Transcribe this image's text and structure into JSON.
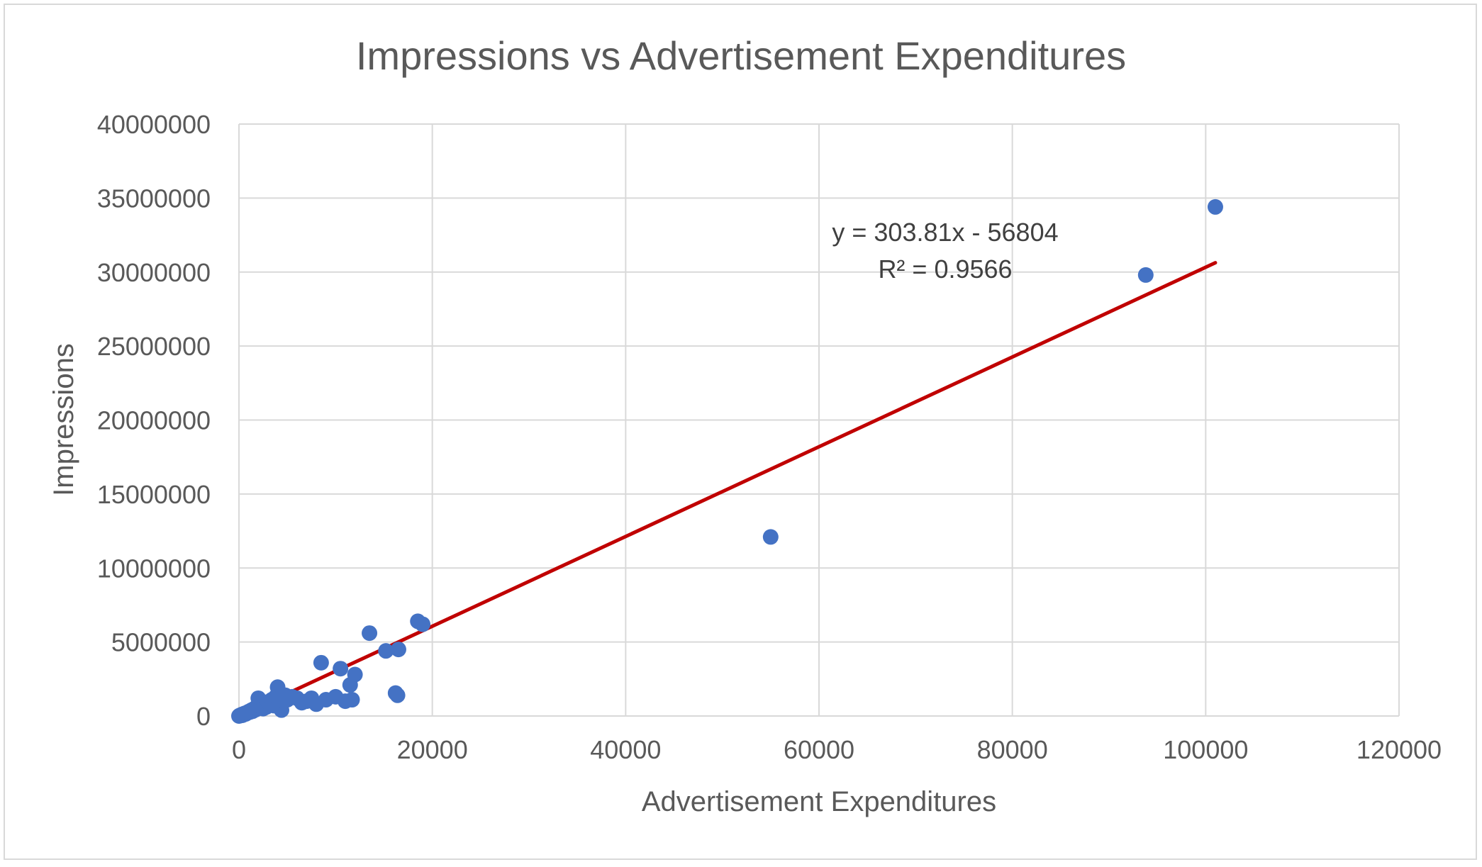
{
  "chart_data": {
    "type": "scatter",
    "title": "Impressions vs Advertisement Expenditures",
    "xlabel": "Advertisement Expenditures",
    "ylabel": "Impressions",
    "xlim": [
      0,
      120000
    ],
    "ylim": [
      0,
      40000000
    ],
    "x_ticks": [
      0,
      20000,
      40000,
      60000,
      80000,
      100000,
      120000
    ],
    "y_ticks": [
      0,
      5000000,
      10000000,
      15000000,
      20000000,
      25000000,
      30000000,
      35000000,
      40000000
    ],
    "x_tick_labels": [
      "0",
      "20000",
      "40000",
      "60000",
      "80000",
      "100000",
      "120000"
    ],
    "y_tick_labels": [
      "0",
      "5000000",
      "10000000",
      "15000000",
      "20000000",
      "25000000",
      "30000000",
      "35000000",
      "40000000"
    ],
    "grid": true,
    "legend": "none",
    "colors": {
      "points": "#4472c4",
      "trendline": "#c00000",
      "grid": "#d9d9d9",
      "text": "#595959"
    },
    "series": [
      {
        "points": [
          [
            0,
            0
          ],
          [
            50,
            20000
          ],
          [
            100,
            40000
          ],
          [
            150,
            30000
          ],
          [
            200,
            60000
          ],
          [
            250,
            80000
          ],
          [
            300,
            100000
          ],
          [
            350,
            50000
          ],
          [
            400,
            120000
          ],
          [
            450,
            90000
          ],
          [
            500,
            150000
          ],
          [
            600,
            180000
          ],
          [
            700,
            140000
          ],
          [
            800,
            220000
          ],
          [
            900,
            250000
          ],
          [
            1000,
            300000
          ],
          [
            1100,
            260000
          ],
          [
            1200,
            350000
          ],
          [
            1300,
            400000
          ],
          [
            1400,
            320000
          ],
          [
            1500,
            450000
          ],
          [
            1600,
            500000
          ],
          [
            1700,
            420000
          ],
          [
            1800,
            600000
          ],
          [
            1900,
            550000
          ],
          [
            2000,
            1200000
          ],
          [
            2100,
            700000
          ],
          [
            2200,
            800000
          ],
          [
            2300,
            650000
          ],
          [
            2400,
            900000
          ],
          [
            2500,
            500000
          ],
          [
            2600,
            750000
          ],
          [
            2700,
            850000
          ],
          [
            2800,
            600000
          ],
          [
            3000,
            950000
          ],
          [
            3200,
            800000
          ],
          [
            3400,
            1100000
          ],
          [
            3600,
            700000
          ],
          [
            3800,
            1300000
          ],
          [
            4000,
            1950000
          ],
          [
            4200,
            1200000
          ],
          [
            4400,
            400000
          ],
          [
            4600,
            1000000
          ],
          [
            4800,
            1400000
          ],
          [
            5000,
            1100000
          ],
          [
            5500,
            1300000
          ],
          [
            6000,
            1200000
          ],
          [
            6500,
            900000
          ],
          [
            7000,
            1000000
          ],
          [
            7500,
            1200000
          ],
          [
            8000,
            800000
          ],
          [
            8500,
            3600000
          ],
          [
            9000,
            1100000
          ],
          [
            10000,
            1300000
          ],
          [
            10500,
            3200000
          ],
          [
            11000,
            1000000
          ],
          [
            11500,
            2100000
          ],
          [
            11700,
            1100000
          ],
          [
            12000,
            2800000
          ],
          [
            13500,
            5600000
          ],
          [
            15200,
            4400000
          ],
          [
            16200,
            1550000
          ],
          [
            16400,
            1400000
          ],
          [
            16500,
            4500000
          ],
          [
            18500,
            6400000
          ],
          [
            19000,
            6200000
          ],
          [
            55000,
            12100000
          ],
          [
            93800,
            29800000
          ],
          [
            101000,
            34400000
          ]
        ]
      }
    ],
    "trendline": {
      "type": "linear",
      "slope": 303.81,
      "intercept": -56804,
      "x_range": [
        0,
        101000
      ],
      "equation_label": "y = 303.81x - 56804",
      "r2_label": "R² = 0.9566"
    }
  }
}
